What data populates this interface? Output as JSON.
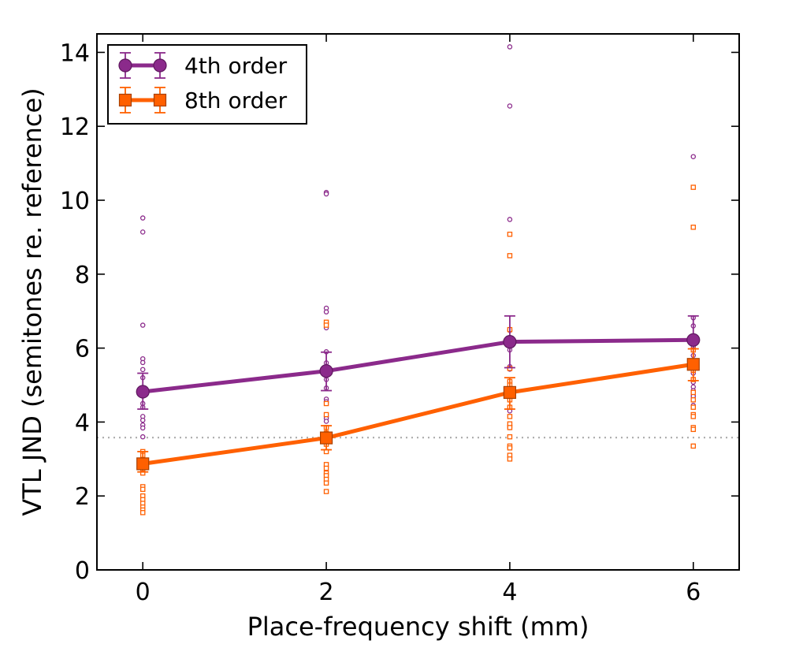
{
  "chart_data": {
    "type": "line",
    "title": "",
    "xlabel": "Place-frequency shift (mm)",
    "ylabel": "VTL JND (semitones re. reference)",
    "xlim": [
      -0.5,
      6.5
    ],
    "ylim": [
      0,
      14.5
    ],
    "xticks": [
      0,
      2,
      4,
      6
    ],
    "yticks": [
      0,
      2,
      4,
      6,
      8,
      10,
      12,
      14
    ],
    "grid": false,
    "legend_position": "top-left",
    "reference_line": {
      "y": 3.58,
      "style": "dotted",
      "color": "#b0b0b0"
    },
    "series": [
      {
        "name": "4th order",
        "color": "#8b2a8b",
        "marker": "circle",
        "x": [
          0,
          2,
          4,
          6
        ],
        "mean": [
          4.82,
          5.38,
          6.17,
          6.22
        ],
        "error_low": [
          4.35,
          4.85,
          5.47,
          5.61
        ],
        "error_high": [
          5.32,
          5.89,
          6.87,
          6.87
        ],
        "individual": [
          {
            "x": 0,
            "values": [
              9.52,
              9.14,
              6.62,
              5.71,
              5.61,
              5.42,
              5.2,
              4.9,
              4.7,
              4.5,
              4.4,
              4.15,
              4.05,
              3.92,
              3.84,
              3.6
            ]
          },
          {
            "x": 2,
            "values": [
              10.21,
              10.17,
              7.08,
              6.98,
              6.55,
              5.9,
              5.6,
              5.15,
              4.92,
              4.62,
              4.55,
              4.15,
              4.1,
              4.02,
              3.85
            ]
          },
          {
            "x": 4,
            "values": [
              14.15,
              12.55,
              9.48,
              6.48,
              6.1,
              5.95,
              5.5,
              5.43,
              5.1,
              4.98,
              4.75,
              4.62,
              4.35,
              4.3,
              3.9,
              3.85
            ]
          },
          {
            "x": 6,
            "values": [
              11.18,
              6.82,
              6.6,
              6.3,
              6.05,
              5.8,
              5.52,
              5.32,
              5.08,
              4.95,
              4.85,
              4.7,
              4.45,
              4.15,
              3.85
            ]
          }
        ]
      },
      {
        "name": "8th order",
        "color": "#ff6000",
        "marker": "square",
        "x": [
          0,
          2,
          4,
          6
        ],
        "mean": [
          2.87,
          3.57,
          4.8,
          5.56
        ],
        "error_low": [
          2.65,
          3.25,
          4.35,
          5.12
        ],
        "error_high": [
          3.2,
          3.9,
          5.2,
          5.98
        ],
        "individual": [
          {
            "x": 0,
            "values": [
              3.2,
              3.1,
              2.95,
              2.8,
              2.7,
              2.62,
              2.25,
              2.18,
              2.0,
              1.9,
              1.8,
              1.7,
              1.62,
              1.55
            ]
          },
          {
            "x": 2,
            "values": [
              6.7,
              6.62,
              4.5,
              4.2,
              3.85,
              3.7,
              3.4,
              3.2,
              2.85,
              2.75,
              2.62,
              2.55,
              2.45,
              2.35,
              2.12
            ]
          },
          {
            "x": 4,
            "values": [
              9.08,
              8.5,
              6.5,
              5.45,
              5.1,
              5.0,
              4.6,
              4.4,
              4.15,
              3.95,
              3.85,
              3.6,
              3.35,
              3.3,
              3.1,
              3.0
            ]
          },
          {
            "x": 6,
            "values": [
              10.35,
              9.27,
              5.95,
              5.4,
              5.15,
              4.8,
              4.6,
              4.4,
              4.2,
              4.15,
              3.85,
              3.8,
              3.35
            ]
          }
        ]
      }
    ]
  }
}
